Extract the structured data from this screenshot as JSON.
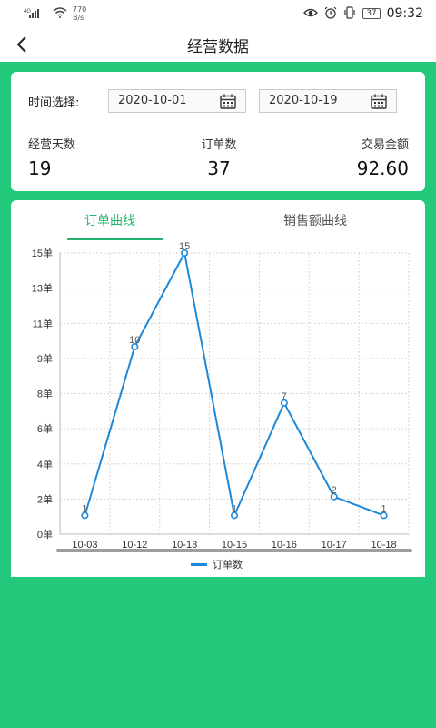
{
  "status_bar": {
    "signal": "⁴ᴳ",
    "net_speed": "770",
    "net_unit": "B/s",
    "battery": "37",
    "time": "09:32"
  },
  "nav": {
    "title": "经营数据"
  },
  "filter": {
    "label": "时间选择:",
    "start_date": "2020-10-01",
    "end_date": "2020-10-19"
  },
  "stats": {
    "days_label": "经营天数",
    "days_value": "19",
    "orders_label": "订单数",
    "orders_value": "37",
    "amount_label": "交易金额",
    "amount_value": "92.60"
  },
  "tabs": {
    "order_curve": "订单曲线",
    "sales_curve": "销售额曲线"
  },
  "colors": {
    "brand_green": "#22c97b",
    "tab_active": "#22b46e",
    "line": "#1e88d8"
  },
  "chart_data": {
    "type": "line",
    "categories": [
      "10-03",
      "10-12",
      "10-13",
      "10-15",
      "10-16",
      "10-17",
      "10-18"
    ],
    "y_ticks": [
      "0单",
      "2单",
      "4单",
      "6单",
      "8单",
      "9单",
      "11单",
      "13单",
      "15单"
    ],
    "ylim": [
      0,
      15
    ],
    "grid": true,
    "legend_position": "bottom-center",
    "series": [
      {
        "name": "订单数",
        "values": [
          1,
          10,
          15,
          1,
          7,
          2,
          1
        ]
      }
    ],
    "data_labels": [
      "1",
      "10",
      "15",
      "1",
      "7",
      "2",
      "1"
    ]
  }
}
